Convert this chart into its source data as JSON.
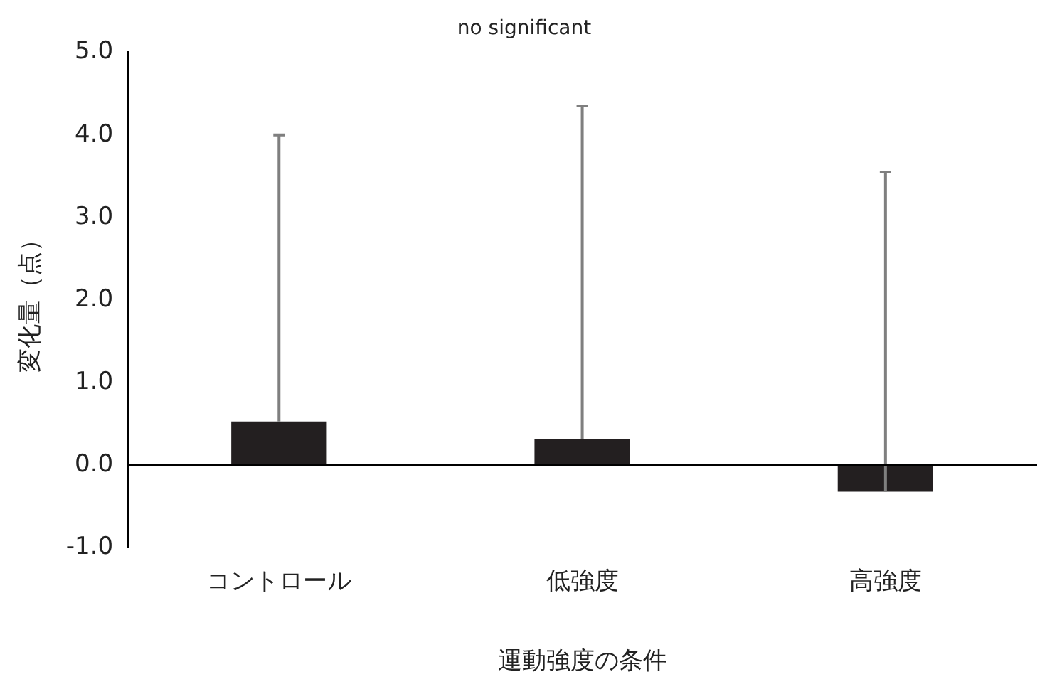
{
  "chart_data": {
    "type": "bar",
    "title": "no significant",
    "xlabel": "運動強度の条件",
    "ylabel": "変化量（点）",
    "categories": [
      "コントロール",
      "低強度",
      "高強度"
    ],
    "series": [
      {
        "color": "#231f20",
        "values": [
          0.53,
          0.32,
          -0.32
        ],
        "errors": [
          [
            0.53,
            4.0
          ],
          [
            0.32,
            4.35
          ],
          [
            -0.32,
            3.55
          ]
        ]
      }
    ],
    "ylim": [
      -1,
      5
    ],
    "yticks": [
      {
        "value": -1,
        "label": "-1.0"
      },
      {
        "value": 0,
        "label": "0.0"
      },
      {
        "value": 1,
        "label": "1.0"
      },
      {
        "value": 2,
        "label": "2.0"
      },
      {
        "value": 3,
        "label": "3.0"
      },
      {
        "value": 4,
        "label": "4.0"
      },
      {
        "value": 5,
        "label": "5.0"
      }
    ],
    "ref_lines": [
      {
        "axis": "y",
        "value": 0,
        "color": "#000000"
      }
    ],
    "grid": false,
    "legend": false
  }
}
